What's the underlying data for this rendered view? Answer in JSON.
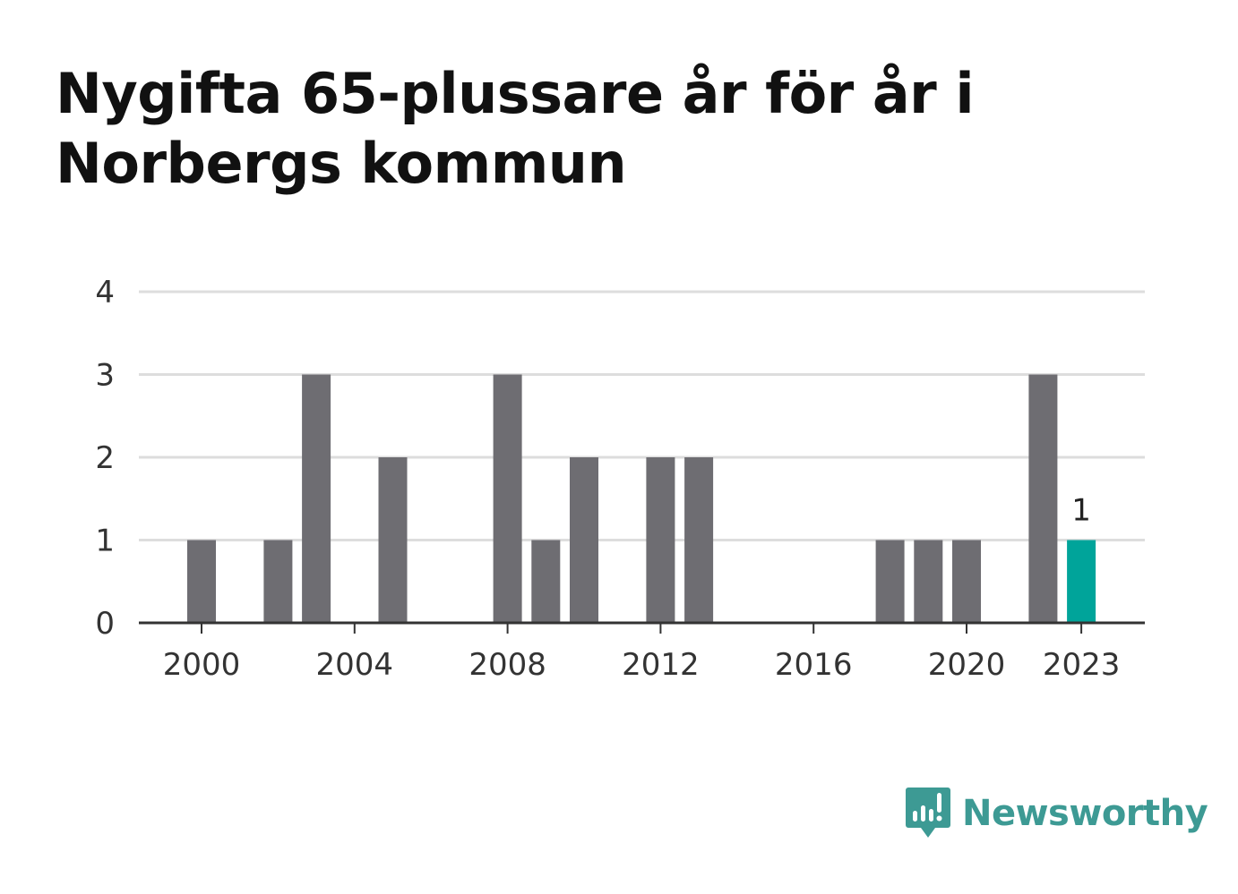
{
  "title": "Nygifta 65-plussare år för år i Norbergs kommun",
  "brand": {
    "name": "Newsworthy",
    "icon": "newsworthy-logo-icon",
    "color": "#3d9a94"
  },
  "colors": {
    "bar": "#6e6d72",
    "highlight": "#00a49a",
    "grid": "#dddddd",
    "axis": "#333333"
  },
  "chart_data": {
    "type": "bar",
    "categories": [
      2000,
      2001,
      2002,
      2003,
      2004,
      2005,
      2006,
      2007,
      2008,
      2009,
      2010,
      2011,
      2012,
      2013,
      2014,
      2015,
      2016,
      2017,
      2018,
      2019,
      2020,
      2021,
      2022,
      2023
    ],
    "values": [
      1,
      0,
      1,
      3,
      0,
      2,
      0,
      0,
      3,
      1,
      2,
      0,
      2,
      2,
      0,
      0,
      0,
      0,
      1,
      1,
      1,
      0,
      3,
      1
    ],
    "highlight_category": 2023,
    "highlight_label": "1",
    "x_ticks": [
      "2000",
      "2004",
      "2008",
      "2012",
      "2016",
      "2020",
      "2023"
    ],
    "y_ticks": [
      "0",
      "1",
      "2",
      "3",
      "4"
    ],
    "ylim": [
      0,
      4
    ],
    "xlabel": "",
    "ylabel": "",
    "grid": true,
    "legend": "none"
  }
}
